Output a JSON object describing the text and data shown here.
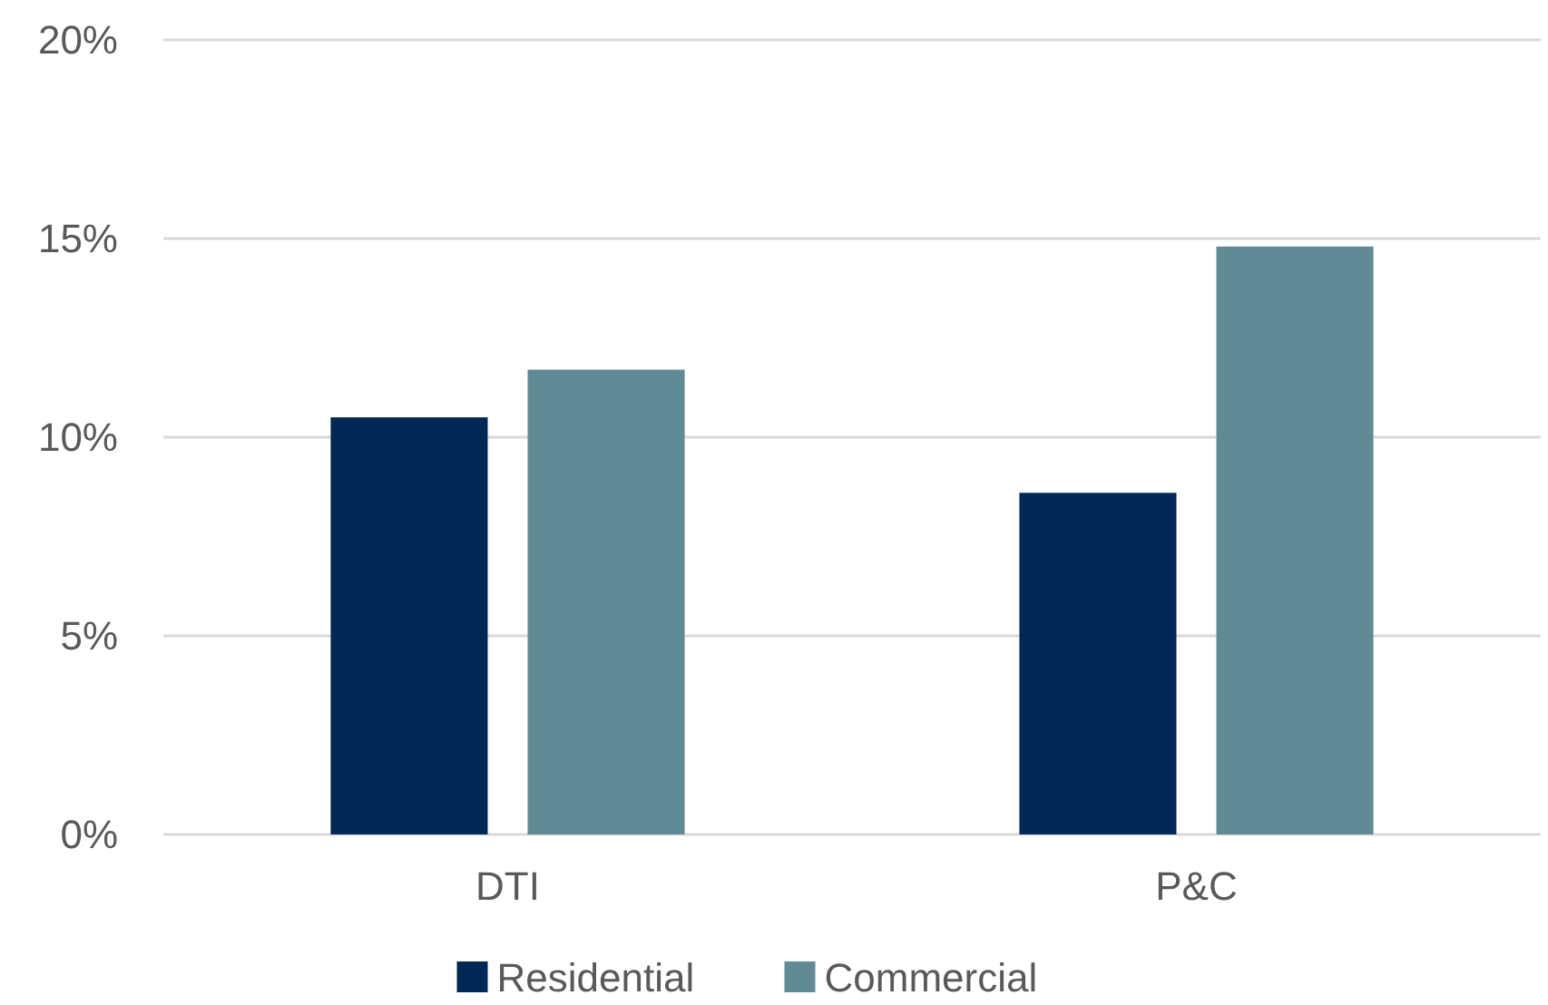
{
  "chart_data": {
    "type": "bar",
    "categories": [
      "DTI",
      "P&C"
    ],
    "series": [
      {
        "name": "Residential",
        "color": "#002855",
        "values": [
          10.5,
          8.6
        ]
      },
      {
        "name": "Commercial",
        "color": "#5f8a96",
        "values": [
          11.7,
          14.8
        ]
      }
    ],
    "ylim": [
      0,
      20
    ],
    "yticks": [
      {
        "value": 0,
        "label": "0%"
      },
      {
        "value": 5,
        "label": "5%"
      },
      {
        "value": 10,
        "label": "10%"
      },
      {
        "value": 15,
        "label": "15%"
      },
      {
        "value": 20,
        "label": "20%"
      }
    ],
    "grid": "y",
    "legend": "bottom"
  }
}
